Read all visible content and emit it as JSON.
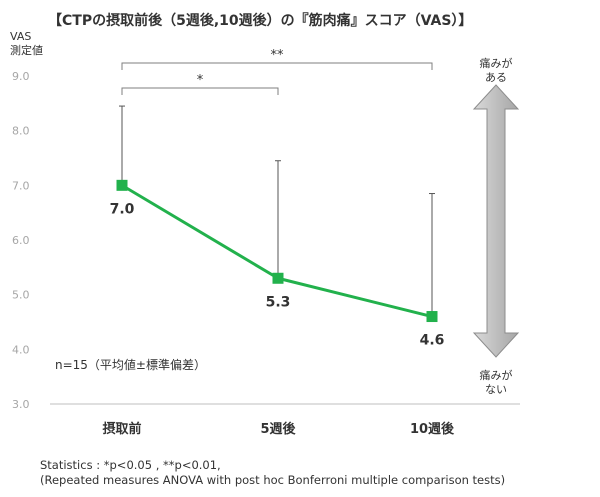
{
  "colors": {
    "line": "#22b14c",
    "marker": "#22b14c",
    "error_bar": "#555555",
    "axis": "#bfbfbf",
    "tick_text": "#a6a6a6",
    "arrow_fill": "#bfbfbf",
    "arrow_stroke": "#7f7f7f",
    "text": "#333333"
  },
  "chart_data": {
    "type": "line",
    "title": "【CTPの摂取前後（5週後,10週後）の『筋肉痛』スコア（VAS）】",
    "ylabel_line1": "VAS",
    "ylabel_line2": "測定値",
    "categories": [
      "摂取前",
      "5週後",
      "10週後"
    ],
    "series": [
      {
        "values": [
          7.0,
          5.3,
          4.6
        ],
        "error_upper": [
          8.45,
          7.45,
          6.85
        ],
        "value_labels": [
          "7.0",
          "5.3",
          "4.6"
        ]
      }
    ],
    "ylim": [
      3.0,
      9.0
    ],
    "y_ticks": [
      "3.0",
      "4.0",
      "5.0",
      "6.0",
      "7.0",
      "8.0",
      "9.0"
    ],
    "grid": false,
    "significance": [
      {
        "from": "摂取前",
        "to": "5週後",
        "label": "*"
      },
      {
        "from": "摂取前",
        "to": "10週後",
        "label": "**"
      }
    ],
    "annotation_n": "n=15（平均値±標準偏差）",
    "arrow_top_label_line1": "痛みが",
    "arrow_top_label_line2": "ある",
    "arrow_bottom_label_line1": "痛みが",
    "arrow_bottom_label_line2": "ない"
  },
  "footnote": {
    "line1": "Statistics : *p<0.05 , **p<0.01,",
    "line2": "(Repeated measures ANOVA with post hoc Bonferroni multiple comparison tests)"
  }
}
